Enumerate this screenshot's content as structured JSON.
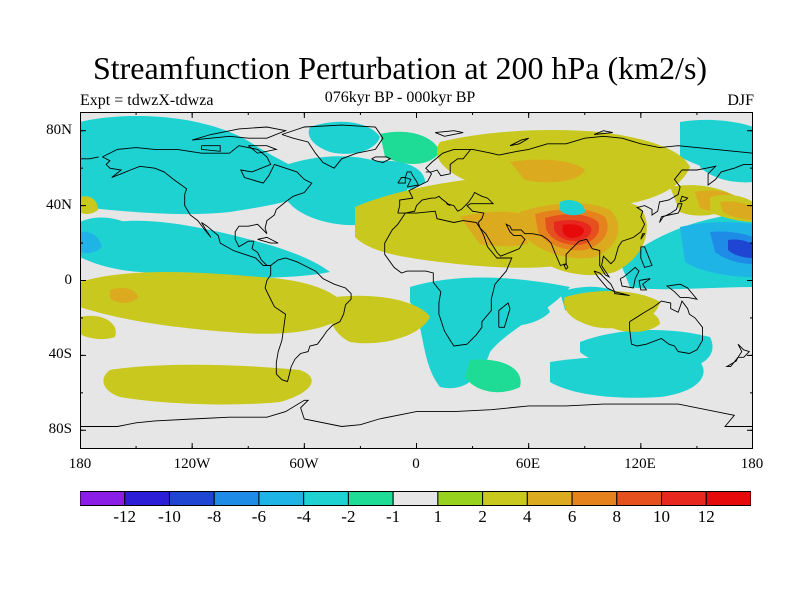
{
  "title": "Streamfunction Perturbation at 200 hPa (km2/s)",
  "left_string": "Expt = tdwzX-tdwza",
  "center_string": "076kyr BP - 000kyr BP",
  "right_string": "DJF",
  "lat_labels": [
    "80N",
    "40N",
    "0",
    "40S",
    "80S"
  ],
  "lon_labels": [
    "180",
    "120W",
    "60W",
    "0",
    "60E",
    "120E",
    "180"
  ],
  "colorbar": {
    "labels": [
      "-12",
      "-10",
      "-8",
      "-6",
      "-4",
      "-2",
      "-1",
      "1",
      "2",
      "4",
      "6",
      "8",
      "10",
      "12"
    ],
    "colors": [
      "#8a1ee6",
      "#2b1ed6",
      "#1e46d2",
      "#1e8ce6",
      "#1eb4e6",
      "#1ed2d2",
      "#1edc96",
      "#e6e6e6",
      "#96d21e",
      "#c8c81e",
      "#dcaa1e",
      "#e6821e",
      "#e6501e",
      "#e6281e",
      "#e60a0a"
    ]
  },
  "chart_data": {
    "type": "heatmap",
    "title": "Streamfunction Perturbation at 200 hPa (km2/s)",
    "xlim": [
      -180,
      180
    ],
    "ylim": [
      -90,
      90
    ],
    "x_ticks": [
      "180",
      "120W",
      "60W",
      "0",
      "60E",
      "120E",
      "180"
    ],
    "y_ticks": [
      "80N",
      "40N",
      "0",
      "40S",
      "80S"
    ],
    "levels": [
      -12,
      -10,
      -8,
      -6,
      -4,
      -2,
      -1,
      1,
      2,
      4,
      6,
      8,
      10,
      12
    ],
    "features": [
      {
        "lon": 75,
        "lat": 25,
        "value": 14
      },
      {
        "lon": 50,
        "lat": 55,
        "value": 5
      },
      {
        "lon": 10,
        "lat": 25,
        "value": 3
      },
      {
        "lon": -55,
        "lat": 25,
        "value": -3
      },
      {
        "lon": -150,
        "lat": 35,
        "value": -4
      },
      {
        "lon": 165,
        "lat": 18,
        "value": -9
      },
      {
        "lon": 160,
        "lat": 40,
        "value": 4
      },
      {
        "lon": -150,
        "lat": -15,
        "value": 4
      },
      {
        "lon": -70,
        "lat": -15,
        "value": 3
      },
      {
        "lon": 55,
        "lat": -18,
        "value": -3
      },
      {
        "lon": 120,
        "lat": -25,
        "value": 3
      },
      {
        "lon": -90,
        "lat": -55,
        "value": 2
      }
    ]
  }
}
